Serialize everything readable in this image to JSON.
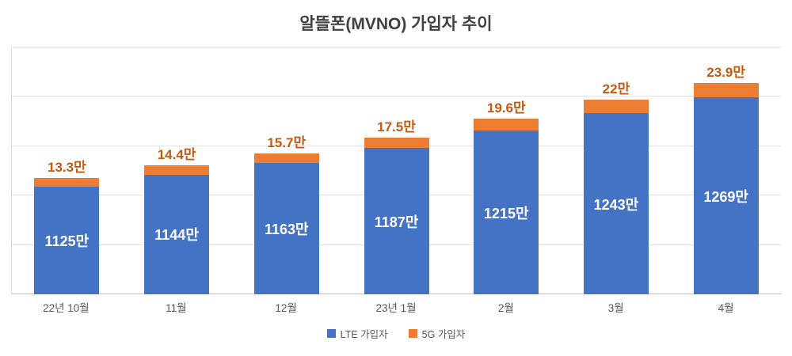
{
  "chart_data": {
    "type": "bar",
    "stacked": true,
    "title": "알뜰폰(MVNO) 가입자 추이",
    "categories": [
      "22년 10월",
      "11월",
      "12월",
      "23년 1월",
      "2월",
      "3월",
      "4월"
    ],
    "series": [
      {
        "name": "LTE 가입자",
        "color": "#4472C4",
        "values": [
          1125,
          1144,
          1163,
          1187,
          1215,
          1243,
          1269
        ],
        "data_labels": [
          "1125만",
          "1144만",
          "1163만",
          "1187만",
          "1215만",
          "1243만",
          "1269만"
        ],
        "label_color": "#FFFFFF"
      },
      {
        "name": "5G 가입자",
        "color": "#ED7D31",
        "values": [
          13.3,
          14.4,
          15.7,
          17.5,
          19.6,
          22,
          23.9
        ],
        "data_labels": [
          "13.3만",
          "14.4만",
          "15.7만",
          "17.5만",
          "19.6만",
          "22만",
          "23.9만"
        ],
        "label_color": "#C55A11"
      }
    ],
    "unit": "만",
    "xlabel": "",
    "ylabel": "",
    "ylim": [
      950,
      1350
    ],
    "grid": true,
    "gridline_intervals": 5,
    "y_tick_labels_visible": false,
    "legend_position": "bottom"
  }
}
